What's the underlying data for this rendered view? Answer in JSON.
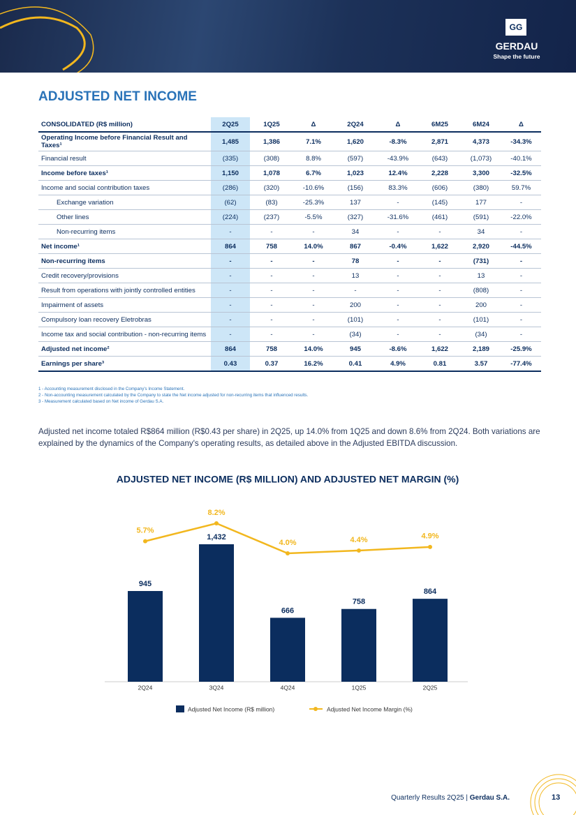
{
  "header": {
    "brand": "GERDAU",
    "tagline": "Shape the future"
  },
  "title": "ADJUSTED NET INCOME",
  "table": {
    "header": [
      "CONSOLIDATED (R$ million)",
      "2Q25",
      "1Q25",
      "Δ",
      "2Q24",
      "Δ",
      "6M25",
      "6M24",
      "Δ"
    ],
    "rows": [
      [
        "Operating Income before Financial Result and Taxes¹",
        "1,485",
        "1,386",
        "7.1%",
        "1,620",
        "-8.3%",
        "2,871",
        "4,373",
        "-34.3%"
      ],
      [
        "Financial result",
        "(335)",
        "(308)",
        "8.8%",
        "(597)",
        "-43.9%",
        "(643)",
        "(1,073)",
        "-40.1%"
      ],
      [
        "Income before taxes¹",
        "1,150",
        "1,078",
        "6.7%",
        "1,023",
        "12.4%",
        "2,228",
        "3,300",
        "-32.5%"
      ],
      [
        "Income and social contribution taxes",
        "(286)",
        "(320)",
        "-10.6%",
        "(156)",
        "83.3%",
        "(606)",
        "(380)",
        "59.7%"
      ],
      [
        "Exchange variation",
        "(62)",
        "(83)",
        "-25.3%",
        "137",
        "-",
        "(145)",
        "177",
        "-"
      ],
      [
        "Other lines",
        "(224)",
        "(237)",
        "-5.5%",
        "(327)",
        "-31.6%",
        "(461)",
        "(591)",
        "-22.0%"
      ],
      [
        "Non-recurring items",
        "-",
        "-",
        "-",
        "34",
        "-",
        "-",
        "34",
        "-"
      ],
      [
        "Net income¹",
        "864",
        "758",
        "14.0%",
        "867",
        "-0.4%",
        "1,622",
        "2,920",
        "-44.5%"
      ],
      [
        "Non-recurring items",
        "-",
        "-",
        "-",
        "78",
        "-",
        "-",
        "(731)",
        "-"
      ],
      [
        "Credit recovery/provisions",
        "-",
        "-",
        "-",
        "13",
        "-",
        "-",
        "13",
        "-"
      ],
      [
        "Result from operations with jointly controlled entities",
        "-",
        "-",
        "-",
        "-",
        "-",
        "-",
        "(808)",
        "-"
      ],
      [
        "Impairment of assets",
        "-",
        "-",
        "-",
        "200",
        "-",
        "-",
        "200",
        "-"
      ],
      [
        "Compulsory loan recovery Eletrobras",
        "-",
        "-",
        "-",
        "(101)",
        "-",
        "-",
        "(101)",
        "-"
      ],
      [
        "Income tax and social contribution - non-recurring items",
        "-",
        "-",
        "-",
        "(34)",
        "-",
        "-",
        "(34)",
        "-"
      ],
      [
        "Adjusted net income²",
        "864",
        "758",
        "14.0%",
        "945",
        "-8.6%",
        "1,622",
        "2,189",
        "-25.9%"
      ],
      [
        "Earnings per share³",
        "0.43",
        "0.37",
        "16.2%",
        "0.41",
        "4.9%",
        "0.81",
        "3.57",
        "-77.4%"
      ]
    ]
  },
  "footnotes": [
    "1 - Accounting measurement disclosed in the Company's Income Statement.",
    "2 - Non-accounting measurement calculated by the Company to state the Net income adjusted for non-recurring items that influenced results.",
    "3 - Measurement calculated based on Net income of Gerdau S.A."
  ],
  "paragraph": "Adjusted net income totaled R$864 million (R$0.43 per share) in 2Q25, up 14.0% from 1Q25 and down 8.6% from 2Q24. Both variations are explained by the dynamics of the Company's operating results, as detailed above in the Adjusted EBITDA discussion.",
  "chart_data": {
    "type": "bar",
    "title": "ADJUSTED NET INCOME (R$ MILLION) AND ADJUSTED NET MARGIN (%)",
    "categories": [
      "2Q24",
      "3Q24",
      "4Q24",
      "1Q25",
      "2Q25"
    ],
    "series": [
      {
        "name": "Adjusted Net Income (R$ million)",
        "type": "bar",
        "color": "#0b2d5e",
        "values": [
          945,
          1432,
          666,
          758,
          864
        ],
        "value_labels": [
          "945",
          "1,432",
          "666",
          "758",
          "864"
        ]
      },
      {
        "name": "Adjusted Net Income Margin (%)",
        "type": "line",
        "axis": "y2",
        "color": "#f2b71e",
        "values": [
          5.7,
          8.2,
          4.0,
          4.4,
          4.9
        ],
        "value_labels": [
          "5.7%",
          "8.2%",
          "4.0%",
          "4.4%",
          "4.9%"
        ]
      }
    ]
  },
  "footer": {
    "text": "Quarterly Results 2Q25 | ",
    "company": "Gerdau S.A.",
    "page": "13"
  }
}
